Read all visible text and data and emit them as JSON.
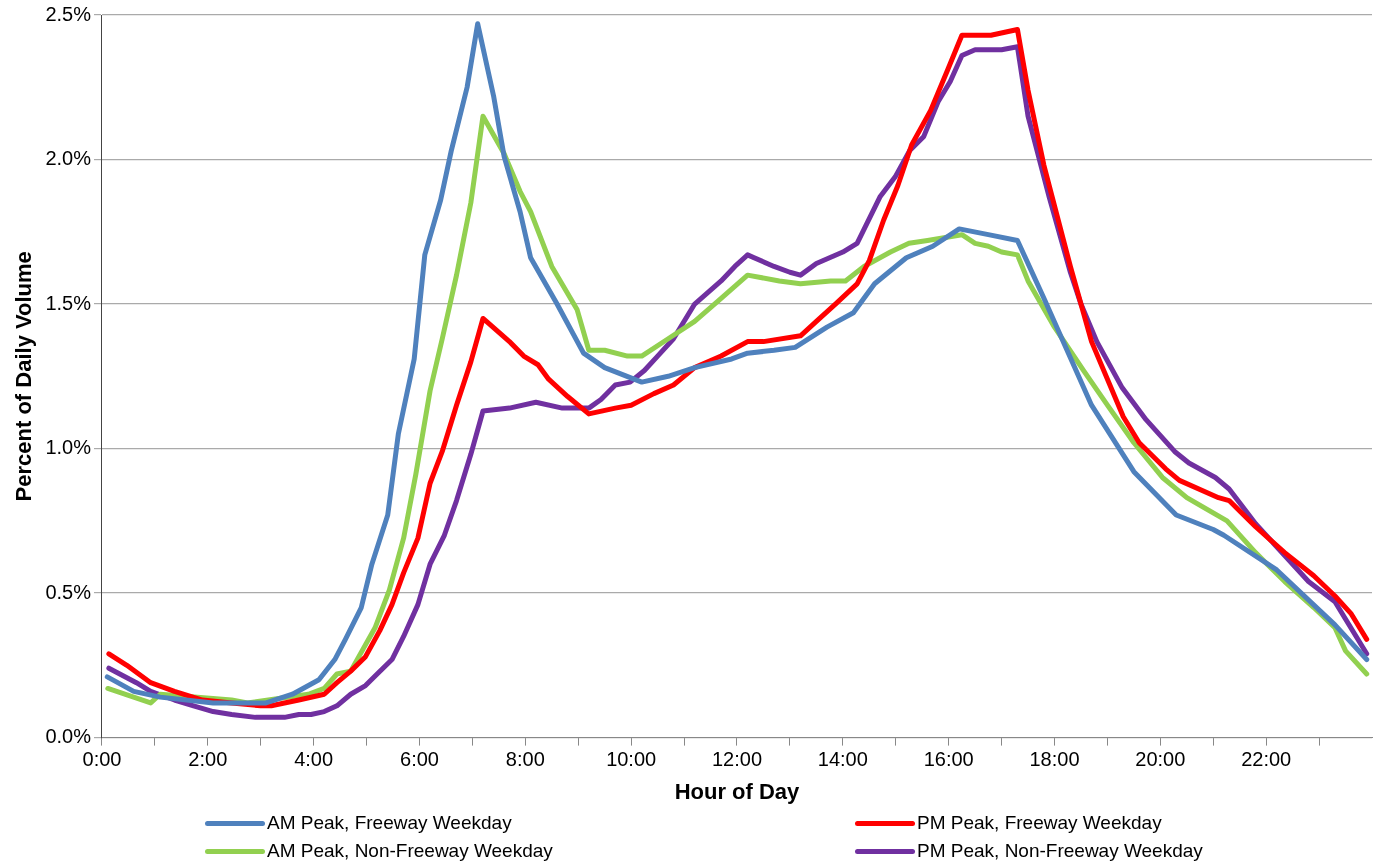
{
  "chart_data": {
    "type": "line",
    "xlabel": "Hour of Day",
    "ylabel": "Percent of Daily Volume",
    "grid": "y",
    "legend": "bottom",
    "marker": "none",
    "line_style": "solid",
    "xlim": [
      0,
      24
    ],
    "xticks": [
      {
        "value": 0,
        "label": "0:00"
      },
      {
        "value": 1,
        "label": null
      },
      {
        "value": 2,
        "label": "2:00"
      },
      {
        "value": 3,
        "label": null
      },
      {
        "value": 4,
        "label": "4:00"
      },
      {
        "value": 5,
        "label": null
      },
      {
        "value": 6,
        "label": "6:00"
      },
      {
        "value": 7,
        "label": null
      },
      {
        "value": 8,
        "label": "8:00"
      },
      {
        "value": 9,
        "label": null
      },
      {
        "value": 10,
        "label": "10:00"
      },
      {
        "value": 11,
        "label": null
      },
      {
        "value": 12,
        "label": "12:00"
      },
      {
        "value": 13,
        "label": null
      },
      {
        "value": 14,
        "label": "14:00"
      },
      {
        "value": 15,
        "label": null
      },
      {
        "value": 16,
        "label": "16:00"
      },
      {
        "value": 17,
        "label": null
      },
      {
        "value": 18,
        "label": "18:00"
      },
      {
        "value": 19,
        "label": null
      },
      {
        "value": 20,
        "label": "20:00"
      },
      {
        "value": 21,
        "label": null
      },
      {
        "value": 22,
        "label": "22:00"
      },
      {
        "value": 23,
        "label": null
      }
    ],
    "ylim": [
      0,
      2.5
    ],
    "yticks": [
      {
        "value": 0,
        "label": "0.0%"
      },
      {
        "value": 0.5,
        "label": "0.5%"
      },
      {
        "value": 1,
        "label": "1.0%"
      },
      {
        "value": 1.5,
        "label": "1.5%"
      },
      {
        "value": 2,
        "label": "2.0%"
      },
      {
        "value": 2.5,
        "label": "2.5%"
      }
    ],
    "series": [
      {
        "name": "AM Peak, Freeway Weekday",
        "color": "#4f81bd",
        "x": [
          0.1,
          0.6,
          1.1,
          2.1,
          3.1,
          3.6,
          4.1,
          4.4,
          4.6,
          4.9,
          5.1,
          5.4,
          5.6,
          5.9,
          6.1,
          6.4,
          6.6,
          6.9,
          7.1,
          7.4,
          7.6,
          7.9,
          8.1,
          8.6,
          9.1,
          9.5,
          10.2,
          10.7,
          11.2,
          11.9,
          12.2,
          12.7,
          13.1,
          13.7,
          14.2,
          14.6,
          15.2,
          15.7,
          16.2,
          16.75,
          17.3,
          17.8,
          18.7,
          19.5,
          20.3,
          21.0,
          21.2,
          22.2,
          23.3,
          23.9
        ],
        "values": [
          0.21,
          0.16,
          0.14,
          0.12,
          0.12,
          0.15,
          0.2,
          0.27,
          0.34,
          0.45,
          0.6,
          0.77,
          1.05,
          1.31,
          1.67,
          1.86,
          2.03,
          2.25,
          2.47,
          2.22,
          2.01,
          1.82,
          1.66,
          1.5,
          1.33,
          1.28,
          1.23,
          1.25,
          1.28,
          1.31,
          1.33,
          1.34,
          1.35,
          1.42,
          1.47,
          1.57,
          1.66,
          1.7,
          1.76,
          1.74,
          1.72,
          1.52,
          1.15,
          0.92,
          0.77,
          0.72,
          0.7,
          0.58,
          0.39,
          0.27
        ]
      },
      {
        "name": "PM Peak, Freeway Weekday",
        "color": "#ff0000",
        "x": [
          0.13,
          0.47,
          0.92,
          1.37,
          1.9,
          2.45,
          3.0,
          3.2,
          3.72,
          4.2,
          4.44,
          4.7,
          4.98,
          5.25,
          5.48,
          5.7,
          5.97,
          6.2,
          6.43,
          6.7,
          6.97,
          7.2,
          7.7,
          7.97,
          8.24,
          8.44,
          8.8,
          9.2,
          9.7,
          10.0,
          10.43,
          10.8,
          11.2,
          11.7,
          12.2,
          12.5,
          13.2,
          13.5,
          13.86,
          14.27,
          14.5,
          14.77,
          15.04,
          15.3,
          15.66,
          15.98,
          16.25,
          16.8,
          17.3,
          17.5,
          17.8,
          18.3,
          18.7,
          19.3,
          19.6,
          20.1,
          20.36,
          21.1,
          21.3,
          21.8,
          22.35,
          22.9,
          23.3,
          23.6,
          23.9
        ],
        "values": [
          0.29,
          0.25,
          0.19,
          0.16,
          0.13,
          0.12,
          0.11,
          0.11,
          0.13,
          0.15,
          0.19,
          0.23,
          0.28,
          0.37,
          0.46,
          0.57,
          0.69,
          0.88,
          0.99,
          1.15,
          1.3,
          1.45,
          1.37,
          1.32,
          1.29,
          1.24,
          1.18,
          1.12,
          1.14,
          1.15,
          1.19,
          1.22,
          1.28,
          1.32,
          1.37,
          1.37,
          1.39,
          1.44,
          1.5,
          1.57,
          1.65,
          1.79,
          1.91,
          2.05,
          2.17,
          2.31,
          2.43,
          2.43,
          2.45,
          2.24,
          1.98,
          1.63,
          1.37,
          1.11,
          1.02,
          0.93,
          0.89,
          0.83,
          0.82,
          0.73,
          0.64,
          0.56,
          0.49,
          0.43,
          0.34
        ]
      },
      {
        "name": "AM Peak, Non-Freeway Weekday",
        "color": "#92d050",
        "x": [
          0.11,
          0.92,
          1.1,
          2.45,
          2.75,
          3.9,
          4.2,
          4.44,
          4.7,
          5.16,
          5.43,
          5.7,
          5.93,
          6.2,
          6.43,
          6.7,
          6.97,
          7.2,
          7.6,
          7.9,
          8.1,
          8.5,
          8.98,
          9.2,
          9.5,
          9.93,
          10.2,
          10.7,
          11.2,
          11.7,
          12.2,
          12.8,
          13.2,
          13.77,
          14.05,
          14.4,
          14.9,
          15.25,
          15.6,
          16.25,
          16.5,
          16.75,
          17.0,
          17.3,
          17.5,
          18.0,
          18.55,
          19.0,
          19.5,
          20.04,
          20.5,
          21.26,
          21.8,
          22.35,
          22.9,
          23.3,
          23.5,
          23.9
        ],
        "values": [
          0.17,
          0.12,
          0.15,
          0.13,
          0.12,
          0.15,
          0.17,
          0.22,
          0.23,
          0.38,
          0.51,
          0.69,
          0.91,
          1.2,
          1.38,
          1.6,
          1.85,
          2.15,
          2.02,
          1.89,
          1.82,
          1.63,
          1.48,
          1.34,
          1.34,
          1.32,
          1.32,
          1.38,
          1.44,
          1.52,
          1.6,
          1.58,
          1.57,
          1.58,
          1.58,
          1.63,
          1.68,
          1.71,
          1.72,
          1.74,
          1.71,
          1.7,
          1.68,
          1.67,
          1.58,
          1.42,
          1.27,
          1.15,
          1.02,
          0.9,
          0.83,
          0.75,
          0.64,
          0.54,
          0.45,
          0.38,
          0.3,
          0.22
        ]
      },
      {
        "name": "PM Peak, Non-Freeway Weekday",
        "color": "#7030a0",
        "x": [
          0.13,
          0.65,
          0.92,
          1.37,
          1.73,
          2.1,
          2.45,
          2.9,
          3.45,
          3.72,
          3.95,
          4.2,
          4.44,
          4.7,
          4.98,
          5.2,
          5.48,
          5.7,
          5.97,
          6.2,
          6.47,
          6.7,
          6.97,
          7.2,
          7.7,
          8.2,
          8.7,
          9.2,
          9.43,
          9.7,
          9.98,
          10.25,
          10.5,
          10.8,
          11.2,
          11.7,
          11.96,
          12.2,
          12.7,
          13.0,
          13.2,
          13.5,
          14.0,
          14.27,
          14.7,
          14.99,
          15.26,
          15.53,
          15.8,
          16.03,
          16.25,
          16.5,
          17.0,
          17.3,
          17.5,
          17.9,
          18.3,
          18.5,
          18.8,
          19.28,
          19.73,
          20.27,
          20.54,
          21.04,
          21.3,
          21.8,
          22.35,
          22.8,
          23.3,
          23.6,
          23.9
        ],
        "values": [
          0.24,
          0.19,
          0.16,
          0.13,
          0.11,
          0.09,
          0.08,
          0.07,
          0.07,
          0.08,
          0.08,
          0.09,
          0.11,
          0.15,
          0.18,
          0.22,
          0.27,
          0.35,
          0.46,
          0.6,
          0.7,
          0.82,
          0.98,
          1.13,
          1.14,
          1.16,
          1.14,
          1.14,
          1.17,
          1.22,
          1.23,
          1.27,
          1.32,
          1.38,
          1.5,
          1.58,
          1.63,
          1.67,
          1.63,
          1.61,
          1.6,
          1.64,
          1.68,
          1.71,
          1.87,
          1.94,
          2.03,
          2.08,
          2.2,
          2.27,
          2.36,
          2.38,
          2.38,
          2.39,
          2.15,
          1.87,
          1.61,
          1.5,
          1.37,
          1.21,
          1.1,
          0.99,
          0.95,
          0.9,
          0.86,
          0.74,
          0.63,
          0.54,
          0.47,
          0.38,
          0.29
        ]
      }
    ]
  }
}
